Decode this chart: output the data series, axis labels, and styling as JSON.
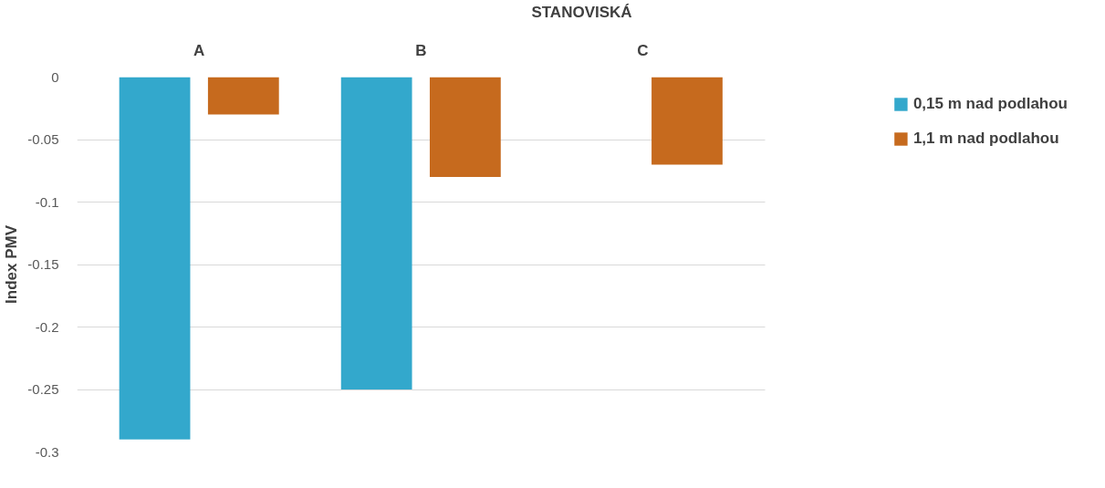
{
  "chart_data": {
    "type": "bar",
    "xlabel": "STANOVISKÁ",
    "ylabel": "Index PMV",
    "categories": [
      "A",
      "B",
      "C"
    ],
    "series": [
      {
        "name": "0,15 m nad podlahou",
        "color": "#33a8cc",
        "values": [
          -0.29,
          -0.25,
          null
        ]
      },
      {
        "name": "1,1 m nad podlahou",
        "color": "#c66a1e",
        "values": [
          -0.03,
          -0.08,
          -0.07
        ]
      }
    ],
    "ylim": [
      -0.3,
      0
    ],
    "yticks": [
      0,
      -0.05,
      -0.1,
      -0.15,
      -0.2,
      -0.25,
      -0.3
    ],
    "grid": "y",
    "legend": "right"
  }
}
